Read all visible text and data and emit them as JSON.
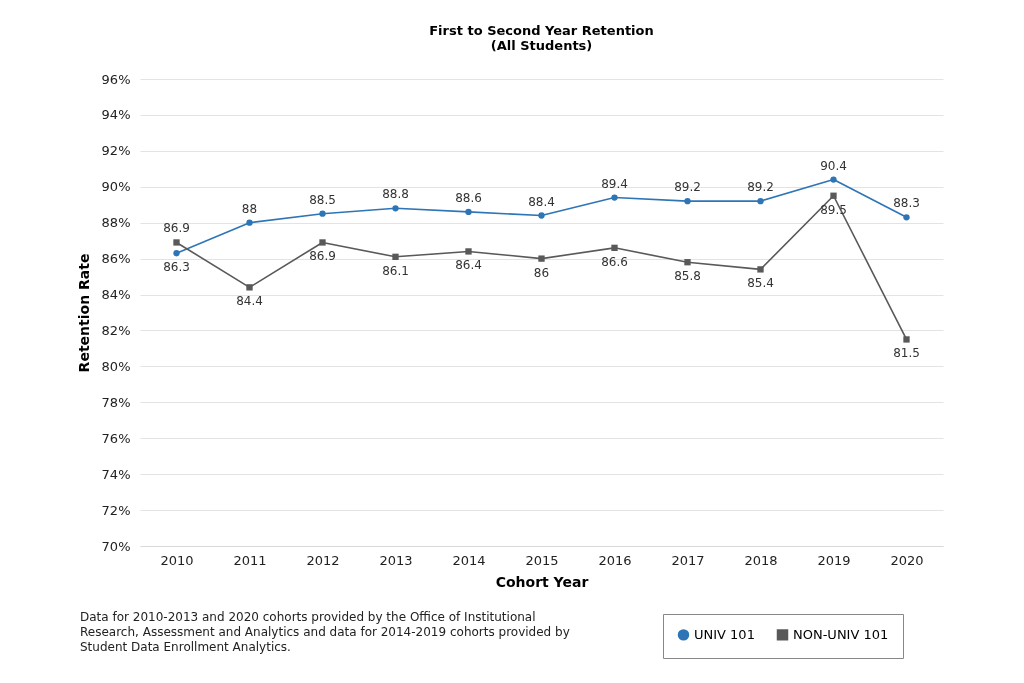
{
  "chart_data": {
    "type": "line",
    "title": "First to Second Year Retention",
    "subtitle": "(All Students)",
    "xlabel": "Cohort Year",
    "ylabel": "Retention Rate",
    "categories": [
      "2010",
      "2011",
      "2012",
      "2013",
      "2014",
      "2015",
      "2016",
      "2017",
      "2018",
      "2019",
      "2020"
    ],
    "series": [
      {
        "name": "UNIV 101",
        "color": "#2e75b6",
        "marker": "circle",
        "values": [
          86.3,
          88,
          88.5,
          88.8,
          88.6,
          88.4,
          89.4,
          89.2,
          89.2,
          90.4,
          88.3
        ]
      },
      {
        "name": "NON-UNIV 101",
        "color": "#595959",
        "marker": "square",
        "values": [
          86.9,
          84.4,
          86.9,
          86.1,
          86.4,
          86,
          86.6,
          85.8,
          85.4,
          89.5,
          81.5
        ]
      }
    ],
    "ylim": [
      70,
      96
    ],
    "yticks": [
      {
        "value": 70,
        "label": "70%"
      },
      {
        "value": 72,
        "label": "72%"
      },
      {
        "value": 74,
        "label": "74%"
      },
      {
        "value": 76,
        "label": "76%"
      },
      {
        "value": 78,
        "label": "78%"
      },
      {
        "value": 80,
        "label": "80%"
      },
      {
        "value": 82,
        "label": "82%"
      },
      {
        "value": 84,
        "label": "84%"
      },
      {
        "value": 86,
        "label": "86%"
      },
      {
        "value": 88,
        "label": "88%"
      },
      {
        "value": 90,
        "label": "90%"
      },
      {
        "value": 92,
        "label": "92%"
      },
      {
        "value": 94,
        "label": "94%"
      },
      {
        "value": 96,
        "label": "96%"
      }
    ],
    "grid": "y",
    "legend": "bottom right",
    "data_labels": true,
    "line_style": "solid",
    "annotations": [
      "Data for 2010-2013 and 2020 cohorts provided by the Office of Institutional Research, Assessment and Analytics and data for 2014-2019 cohorts provided by Student Data Enrollment Analytics."
    ]
  }
}
